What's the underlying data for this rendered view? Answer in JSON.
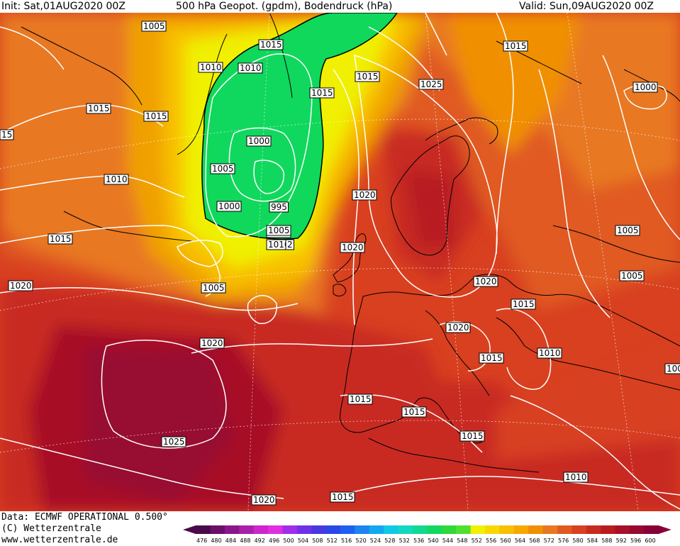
{
  "header": {
    "init": "Init: Sat,01AUG2020 00Z",
    "title": "500 hPa Geopot. (gpdm), Bodendruck (hPa)",
    "valid": "Valid: Sun,09AUG2020 00Z"
  },
  "footer": {
    "data_source": "Data: ECMWF OPERATIONAL 0.500°",
    "copyright": "(C) Wetterzentrale",
    "website": "www.wetterzentrale.de"
  },
  "colorbar": {
    "ticks": [
      "476",
      "480",
      "484",
      "488",
      "492",
      "496",
      "500",
      "504",
      "508",
      "512",
      "516",
      "520",
      "524",
      "528",
      "532",
      "536",
      "540",
      "544",
      "548",
      "552",
      "556",
      "560",
      "564",
      "568",
      "572",
      "576",
      "580",
      "584",
      "588",
      "592",
      "596",
      "600"
    ],
    "colors": [
      "#4a0a4a",
      "#6a0f6a",
      "#8a178a",
      "#aa20aa",
      "#cc26cc",
      "#e02ee0",
      "#a02ee8",
      "#7030e8",
      "#4838e0",
      "#2a48e8",
      "#2060f0",
      "#1e84f0",
      "#12a8f0",
      "#12c8e8",
      "#12d8c0",
      "#12d890",
      "#12d860",
      "#2ed83a",
      "#50e030",
      "#f0f000",
      "#f8d800",
      "#f8c000",
      "#f8a800",
      "#f09000",
      "#e87820",
      "#e05a20",
      "#d84020",
      "#c82c20",
      "#b81c20",
      "#a81028",
      "#980830",
      "#880038"
    ]
  },
  "isobar_labels": [
    {
      "text": "1005"
    },
    {
      "text": "1010"
    },
    {
      "text": "1015"
    },
    {
      "text": "1015"
    },
    {
      "text": "1015"
    },
    {
      "text": "1010"
    },
    {
      "text": "1015"
    },
    {
      "text": "1015"
    },
    {
      "text": "1010"
    },
    {
      "text": "1005"
    },
    {
      "text": "1000"
    },
    {
      "text": "1025"
    },
    {
      "text": "1015"
    },
    {
      "text": "1000"
    },
    {
      "text": "1005"
    },
    {
      "text": "1000"
    },
    {
      "text": "995"
    },
    {
      "text": "1005"
    },
    {
      "text": "1010"
    },
    {
      "text": "2"
    },
    {
      "text": "1015"
    },
    {
      "text": "1020"
    },
    {
      "text": "1020"
    },
    {
      "text": "1020"
    },
    {
      "text": "1005"
    },
    {
      "text": "1020"
    },
    {
      "text": "1005"
    },
    {
      "text": "1015"
    },
    {
      "text": "1020"
    },
    {
      "text": "1015"
    },
    {
      "text": "1010"
    },
    {
      "text": "1020"
    },
    {
      "text": "1015"
    },
    {
      "text": "1015"
    },
    {
      "text": "1015"
    },
    {
      "text": "1025"
    },
    {
      "text": "1010"
    },
    {
      "text": "1020"
    },
    {
      "text": "1015"
    },
    {
      "text": "1005"
    },
    {
      "text": "100"
    },
    {
      "text": "15"
    }
  ]
}
